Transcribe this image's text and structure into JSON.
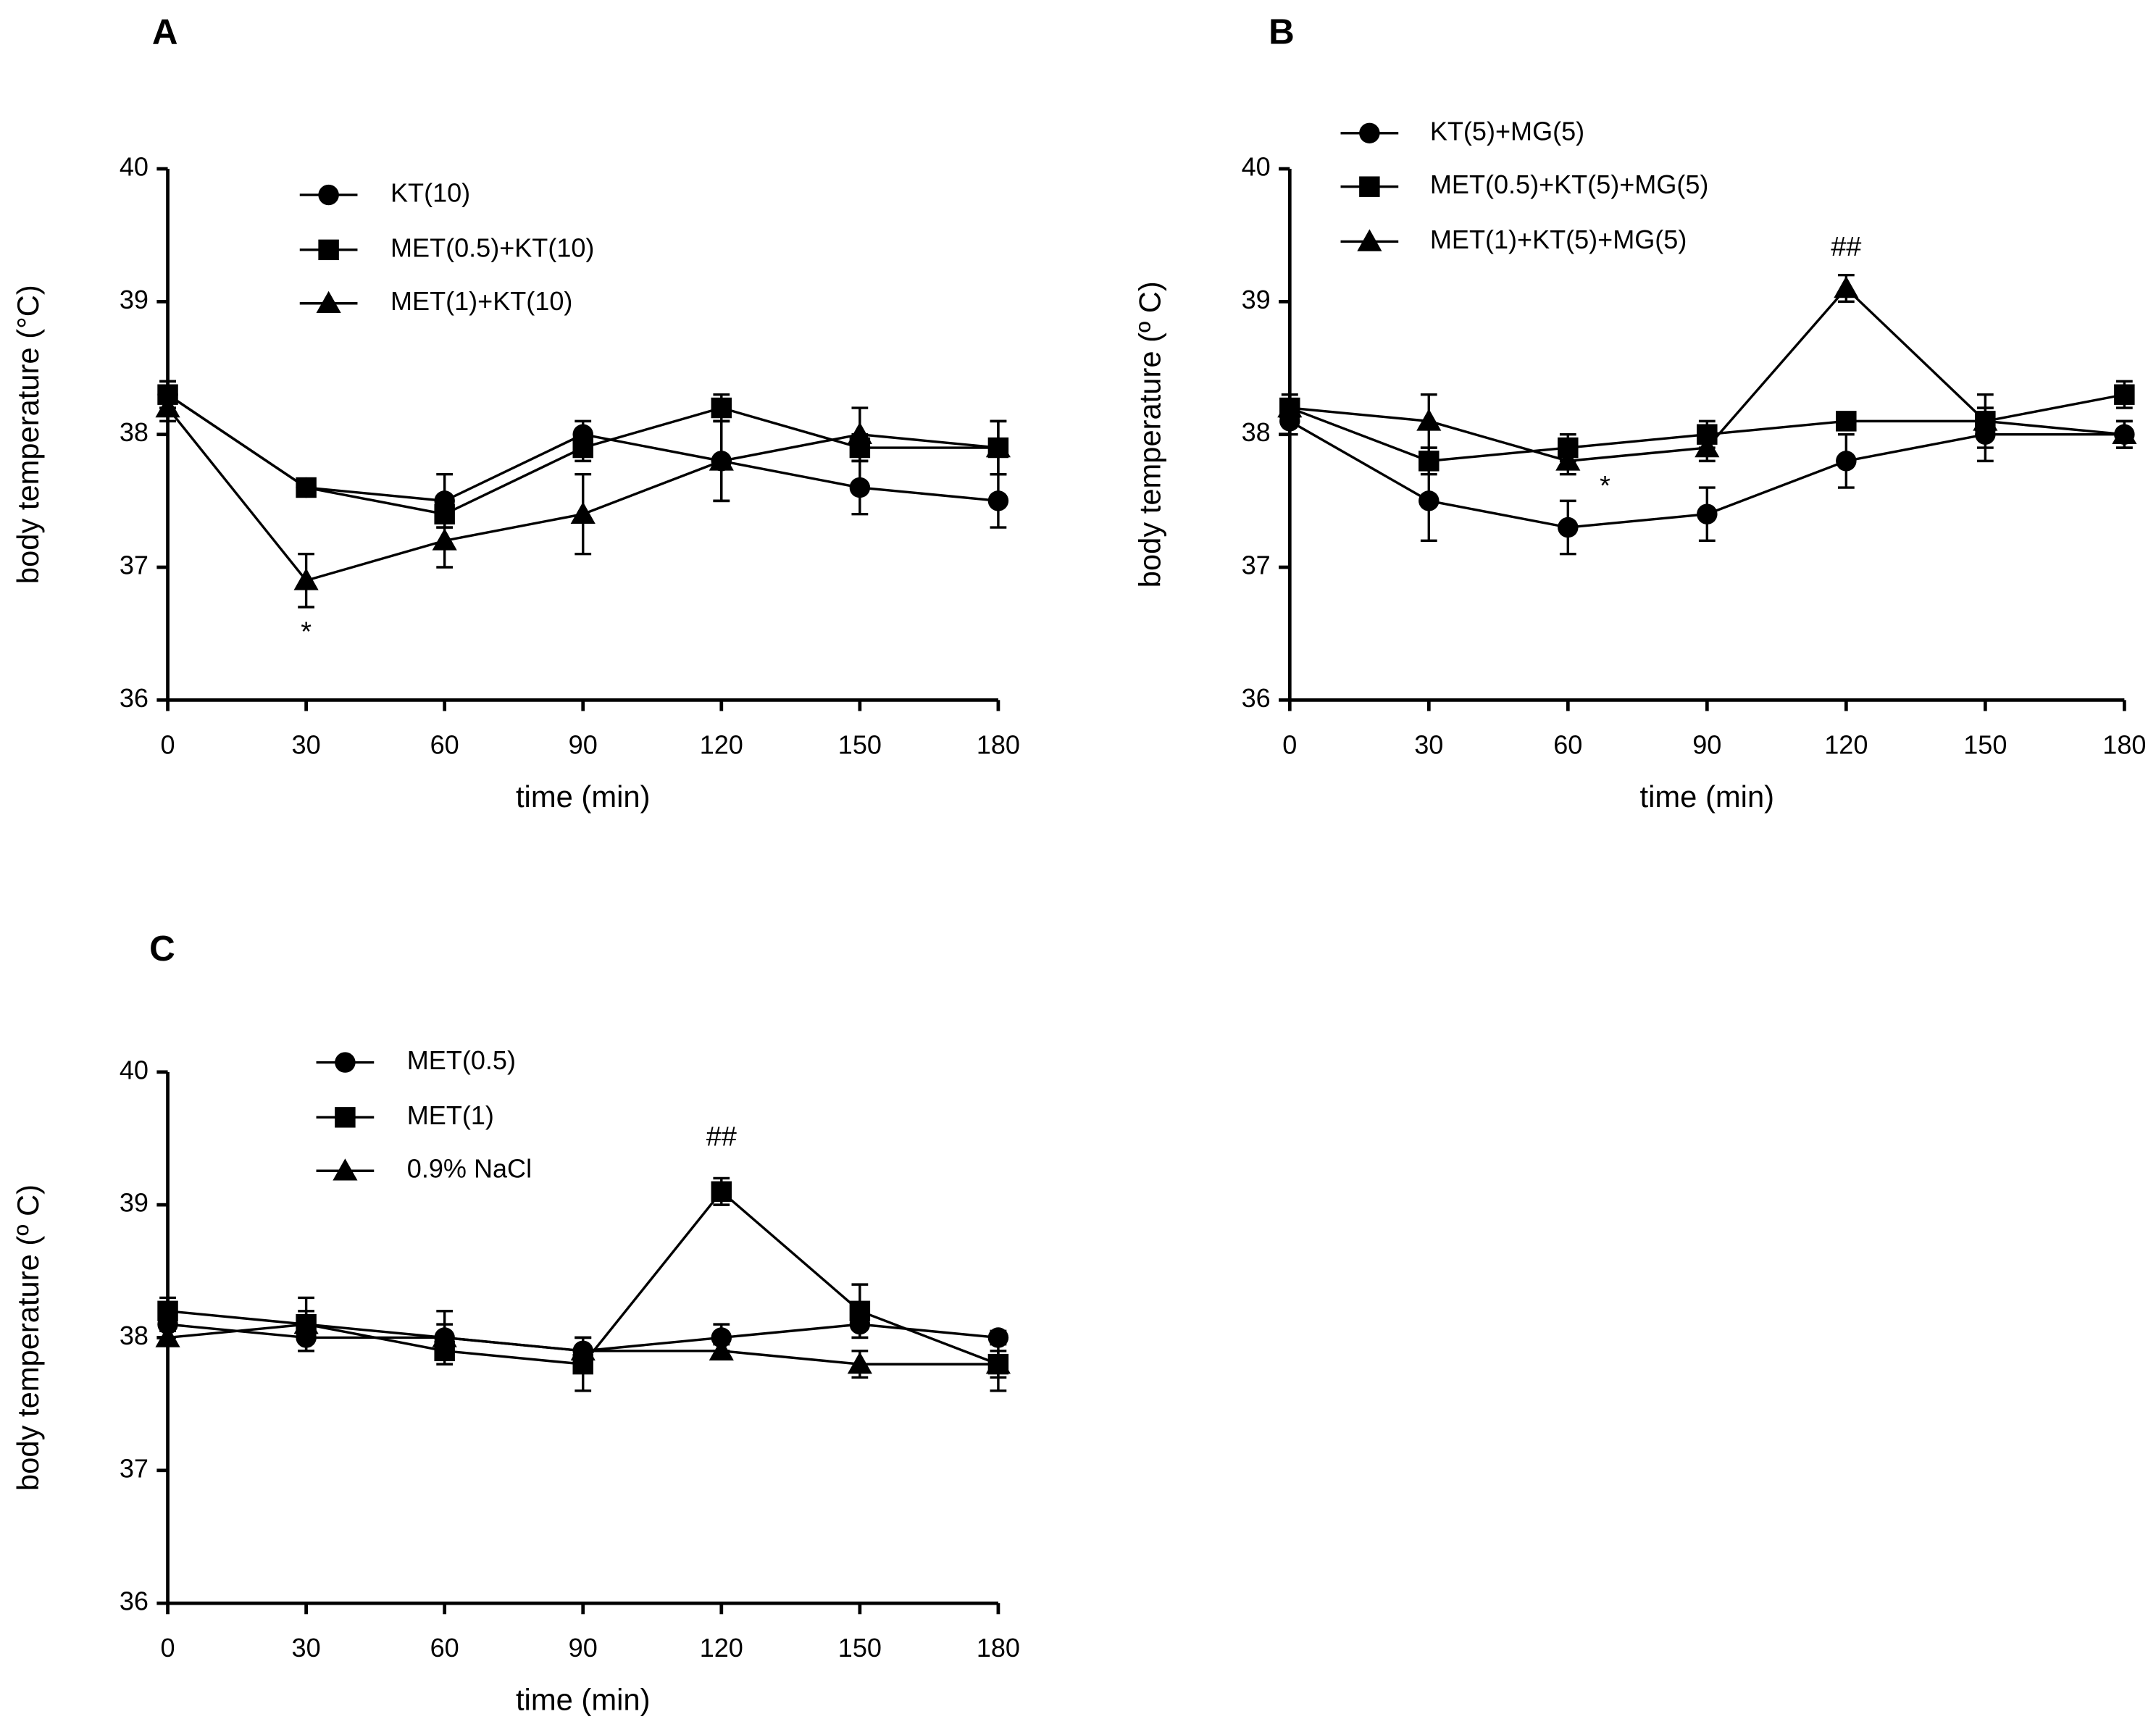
{
  "chart_data": [
    {
      "type": "line",
      "panel_label": "A",
      "xlabel": "time (min)",
      "ylabel": "body temperature (°C)",
      "x": [
        0,
        30,
        60,
        90,
        120,
        150,
        180
      ],
      "xlim": [
        0,
        180
      ],
      "xticks": [
        0,
        30,
        60,
        90,
        120,
        150,
        180
      ],
      "ylim": [
        36,
        40
      ],
      "yticks": [
        36,
        37,
        38,
        39,
        40
      ],
      "series": [
        {
          "name": "KT(10)",
          "color": "#000000",
          "marker": "circle",
          "values": [
            38.3,
            37.6,
            37.5,
            38.0,
            37.8,
            37.6,
            37.5
          ],
          "errors": [
            0.1,
            0.05,
            0.2,
            0.1,
            0.3,
            0.2,
            0.2
          ]
        },
        {
          "name": "MET(0.5)+KT(10)",
          "color": "#000000",
          "marker": "square",
          "values": [
            38.3,
            37.6,
            37.4,
            37.9,
            38.2,
            37.9,
            37.9
          ],
          "errors": [
            0.1,
            0.05,
            0.1,
            0.1,
            0.1,
            0.1,
            0.2
          ]
        },
        {
          "name": "MET(1)+KT(10)",
          "color": "#000000",
          "marker": "triangle",
          "values": [
            38.2,
            36.9,
            37.2,
            37.4,
            37.8,
            38.0,
            37.9
          ],
          "errors": [
            0.1,
            0.2,
            0.2,
            0.3,
            0.3,
            0.2,
            0.2
          ]
        }
      ],
      "annotations": [
        {
          "text": "*",
          "x": 30,
          "y": 36.5
        }
      ]
    },
    {
      "type": "line",
      "panel_label": "B",
      "xlabel": "time (min)",
      "ylabel": "body temperature (º C)",
      "x": [
        0,
        30,
        60,
        90,
        120,
        150,
        180
      ],
      "xlim": [
        0,
        180
      ],
      "xticks": [
        0,
        30,
        60,
        90,
        120,
        150,
        180
      ],
      "ylim": [
        36,
        40
      ],
      "yticks": [
        36,
        37,
        38,
        39,
        40
      ],
      "series": [
        {
          "name": "KT(5)+MG(5)",
          "color": "#000000",
          "marker": "circle",
          "values": [
            38.1,
            37.5,
            37.3,
            37.4,
            37.8,
            38.0,
            38.0
          ],
          "errors": [
            0.1,
            0.3,
            0.2,
            0.2,
            0.2,
            0.2,
            0.1
          ]
        },
        {
          "name": "MET(0.5)+KT(5)+MG(5)",
          "color": "#000000",
          "marker": "square",
          "values": [
            38.2,
            37.8,
            37.9,
            38.0,
            38.1,
            38.1,
            38.3
          ],
          "errors": [
            0.1,
            0.1,
            0.1,
            0.1,
            0.05,
            0.1,
            0.1
          ]
        },
        {
          "name": "MET(1)+KT(5)+MG(5)",
          "color": "#000000",
          "marker": "triangle",
          "values": [
            38.2,
            38.1,
            37.8,
            37.9,
            39.1,
            38.1,
            38.0
          ],
          "errors": [
            0.1,
            0.2,
            0.1,
            0.1,
            0.1,
            0.2,
            0.1
          ]
        }
      ],
      "annotations": [
        {
          "text": "*",
          "x": 68,
          "y": 37.6
        },
        {
          "text": "##",
          "x": 120,
          "y": 39.4
        }
      ]
    },
    {
      "type": "line",
      "panel_label": "C",
      "xlabel": "time (min)",
      "ylabel": "body temperature (º C)",
      "x": [
        0,
        30,
        60,
        90,
        120,
        150,
        180
      ],
      "xlim": [
        0,
        180
      ],
      "xticks": [
        0,
        30,
        60,
        90,
        120,
        150,
        180
      ],
      "ylim": [
        36,
        40
      ],
      "yticks": [
        36,
        37,
        38,
        39,
        40
      ],
      "series": [
        {
          "name": "MET(0.5)",
          "color": "#000000",
          "marker": "circle",
          "values": [
            38.1,
            38.0,
            38.0,
            37.9,
            38.0,
            38.1,
            38.0
          ],
          "errors": [
            0.1,
            0.1,
            0.2,
            0.1,
            0.1,
            0.1,
            0.05
          ]
        },
        {
          "name": "MET(1)",
          "color": "#000000",
          "marker": "square",
          "values": [
            38.2,
            38.1,
            37.9,
            37.8,
            39.1,
            38.2,
            37.8
          ],
          "errors": [
            0.1,
            0.2,
            0.05,
            0.2,
            0.1,
            0.2,
            0.2
          ]
        },
        {
          "name": "0.9% NaCl",
          "color": "#000000",
          "marker": "triangle",
          "values": [
            38.0,
            38.1,
            38.0,
            37.9,
            37.9,
            37.8,
            37.8
          ],
          "errors": [
            0.05,
            0.1,
            0.1,
            0.1,
            0.05,
            0.1,
            0.1
          ]
        }
      ],
      "annotations": [
        {
          "text": "##",
          "x": 120,
          "y": 39.5
        }
      ]
    }
  ]
}
